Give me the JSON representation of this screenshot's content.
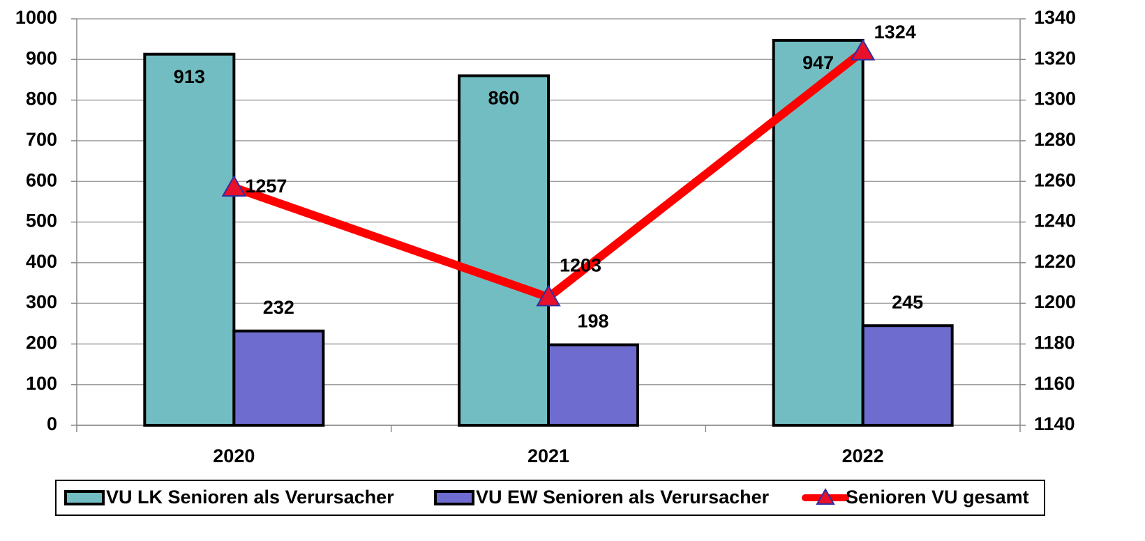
{
  "chart_data": {
    "type": "bar",
    "categories": [
      "2020",
      "2021",
      "2022"
    ],
    "series": [
      {
        "name": "VU LK Senioren als Verursacher",
        "color": "#72bdc2",
        "values": [
          913,
          860,
          947
        ]
      },
      {
        "name": "VU EW Senioren als Verursacher",
        "color": "#6f6ccf",
        "values": [
          232,
          198,
          245
        ]
      },
      {
        "name": "Senioren VU gesamt",
        "color": "#ff0000",
        "type": "line",
        "axis": "y2",
        "marker_color": "#e8102a",
        "values": [
          1257,
          1203,
          1324
        ]
      }
    ],
    "ylim": [
      0,
      1000
    ],
    "yticks": [
      0,
      100,
      200,
      300,
      400,
      500,
      600,
      700,
      800,
      900,
      1000
    ],
    "y2lim": [
      1140,
      1340
    ],
    "y2ticks": [
      1140,
      1160,
      1180,
      1200,
      1220,
      1240,
      1260,
      1280,
      1300,
      1320,
      1340
    ],
    "grid": true,
    "legend": "bottom"
  }
}
